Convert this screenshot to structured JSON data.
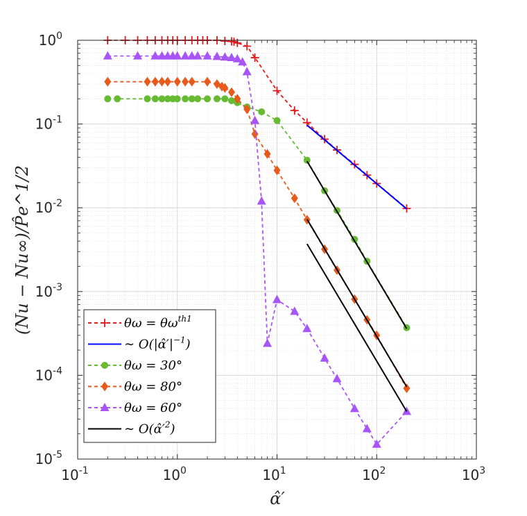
{
  "chart_data": {
    "type": "line",
    "xscale": "log",
    "yscale": "log",
    "xlim": [
      0.1,
      1000
    ],
    "ylim": [
      1e-05,
      1
    ],
    "grid": true,
    "legend_position": "bottom-left",
    "xlabel": "α̂′",
    "ylabel": "(Nu − Nu∞)/P̂e^1/2",
    "x_ticks": [
      {
        "value": 0.1,
        "base": "10",
        "exp": "-1"
      },
      {
        "value": 1,
        "base": "10",
        "exp": "0"
      },
      {
        "value": 10,
        "base": "10",
        "exp": "1"
      },
      {
        "value": 100,
        "base": "10",
        "exp": "2"
      },
      {
        "value": 1000,
        "base": "10",
        "exp": "3"
      }
    ],
    "y_ticks": [
      {
        "value": 1e-05,
        "base": "10",
        "exp": "-5"
      },
      {
        "value": 0.0001,
        "base": "10",
        "exp": "-4"
      },
      {
        "value": 0.001,
        "base": "10",
        "exp": "-3"
      },
      {
        "value": 0.01,
        "base": "10",
        "exp": "-2"
      },
      {
        "value": 0.1,
        "base": "10",
        "exp": "-1"
      },
      {
        "value": 1,
        "base": "10",
        "exp": "0"
      }
    ],
    "series": [
      {
        "name": "θω = θω^th1",
        "color": "#e31a1c",
        "marker": "plus",
        "dash": "dashed",
        "x": [
          0.2,
          0.3,
          0.4,
          0.5,
          0.6,
          0.7,
          0.8,
          0.9,
          1.0,
          1.2,
          1.4,
          1.6,
          1.8,
          2.0,
          2.5,
          3.0,
          3.5,
          3.7,
          4.0,
          5.0,
          6.0,
          10,
          15,
          20,
          30,
          40,
          60,
          80,
          100,
          200
        ],
        "y": [
          1.0,
          1.0,
          1.0,
          1.0,
          1.0,
          1.0,
          1.0,
          1.0,
          1.0,
          1.0,
          1.0,
          1.0,
          1.0,
          1.0,
          1.0,
          0.98,
          0.97,
          0.96,
          0.93,
          0.85,
          0.62,
          0.25,
          0.145,
          0.104,
          0.066,
          0.049,
          0.033,
          0.0245,
          0.0195,
          0.0098
        ]
      },
      {
        "name": "~ O(|α̂′|^−1)",
        "color": "#0000ff",
        "marker": "none",
        "dash": "solid",
        "x": [
          20,
          200
        ],
        "y": [
          0.097,
          0.0097
        ]
      },
      {
        "name": "θω = 30°",
        "color": "#66bb33",
        "marker": "circle",
        "dash": "dashed",
        "x": [
          0.2,
          0.25,
          0.5,
          0.6,
          0.7,
          0.8,
          0.9,
          1.0,
          1.2,
          1.4,
          1.6,
          2.0,
          2.5,
          3.0,
          3.5,
          4.0,
          5.0,
          7.0,
          10,
          20,
          30,
          40,
          60,
          80,
          200
        ],
        "y": [
          0.2,
          0.2,
          0.2,
          0.2,
          0.2,
          0.2,
          0.2,
          0.2,
          0.2,
          0.2,
          0.2,
          0.2,
          0.2,
          0.2,
          0.19,
          0.18,
          0.16,
          0.14,
          0.11,
          0.037,
          0.016,
          0.0093,
          0.0042,
          0.0023,
          0.00037
        ]
      },
      {
        "name": "θω = 80°",
        "color": "#e85a1b",
        "marker": "diamond",
        "dash": "dashed",
        "x": [
          0.2,
          0.5,
          0.6,
          0.7,
          0.8,
          1.0,
          1.2,
          1.4,
          2.0,
          2.5,
          2.8,
          3.0,
          3.5,
          4.0,
          5.0,
          6.0,
          8.0,
          10,
          15,
          20,
          30,
          40,
          60,
          80,
          100,
          200
        ],
        "y": [
          0.32,
          0.32,
          0.32,
          0.32,
          0.32,
          0.32,
          0.32,
          0.32,
          0.32,
          0.3,
          0.28,
          0.27,
          0.24,
          0.2,
          0.15,
          0.076,
          0.044,
          0.028,
          0.013,
          0.0072,
          0.0032,
          0.0018,
          0.00081,
          0.00046,
          0.0003,
          7e-05
        ]
      },
      {
        "name": "θω = 60°",
        "color": "#a855f7",
        "marker": "triangle",
        "dash": "dashed",
        "x": [
          0.2,
          0.4,
          0.6,
          0.7,
          0.8,
          0.9,
          1.0,
          1.2,
          1.4,
          1.6,
          2.0,
          2.5,
          3.0,
          3.5,
          4.0,
          4.5,
          5.0,
          6.0,
          7.0,
          8.0,
          10,
          15,
          20,
          30,
          40,
          60,
          80,
          100,
          200
        ],
        "y": [
          0.65,
          0.65,
          0.65,
          0.65,
          0.65,
          0.65,
          0.65,
          0.65,
          0.65,
          0.65,
          0.65,
          0.64,
          0.63,
          0.62,
          0.6,
          0.55,
          0.42,
          0.11,
          0.012,
          0.00024,
          0.0008,
          0.00058,
          0.00036,
          0.00016,
          9.1e-05,
          4e-05,
          2.3e-05,
          1.5e-05,
          3.7e-05
        ]
      },
      {
        "name": "~ O(α̂′²)",
        "color": "#000000",
        "marker": "none",
        "dash": "solid",
        "x": [
          20,
          200
        ],
        "y": [
          0.036,
          0.00036
        ]
      }
    ],
    "extra_fits": [
      {
        "color": "#000000",
        "x": [
          20,
          200
        ],
        "y": [
          0.0073,
          7.3e-05
        ]
      },
      {
        "color": "#000000",
        "x": [
          20,
          200
        ],
        "y": [
          0.0037,
          3.7e-05
        ]
      }
    ],
    "legend": [
      {
        "series": 0,
        "text": "θω = θω",
        "sup": "th1"
      },
      {
        "series": 1,
        "text": "∼ O(|α̂′|",
        "sup": "−1",
        "tail": ")"
      },
      {
        "series": 2,
        "text": "θω = 30°"
      },
      {
        "series": 3,
        "text": "θω = 80°"
      },
      {
        "series": 4,
        "text": "θω = 60°"
      },
      {
        "series": 5,
        "text": "∼ O(α̂′",
        "sup": "2",
        "tail": ")"
      }
    ]
  }
}
